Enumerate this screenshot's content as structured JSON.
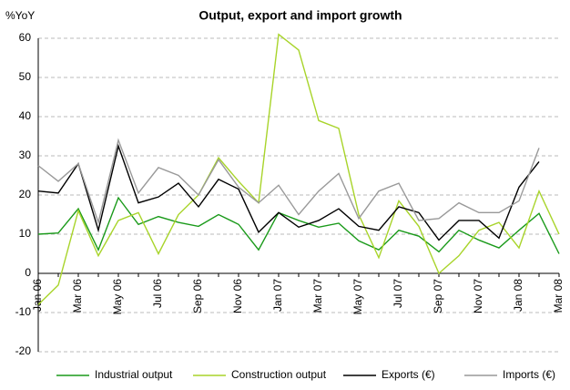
{
  "chart_data": {
    "type": "line",
    "title": "Output, export and import growth",
    "y_axis_label": "%YoY",
    "categories": [
      "Jan 06",
      null,
      "Mar 06",
      null,
      "May 06",
      null,
      "Jul 06",
      null,
      "Sep 06",
      null,
      "Nov 06",
      null,
      "Jan 07",
      null,
      "Mar 07",
      null,
      "May 07",
      null,
      "Jul 07",
      null,
      "Sep 07",
      null,
      "Nov 07",
      null,
      "Jan 08",
      null,
      "Mar 08"
    ],
    "series": [
      {
        "name": "Industrial output",
        "color": "#1a9a1a",
        "values": [
          10,
          10.3,
          16.5,
          6,
          19.3,
          12.5,
          14.5,
          13,
          12,
          15,
          12.5,
          6,
          15.5,
          13.5,
          11.8,
          12.8,
          8.3,
          6,
          11,
          9.5,
          5.5,
          11,
          8.5,
          6.5,
          11,
          15.3,
          5
        ]
      },
      {
        "name": "Construction output",
        "color": "#a8d42a",
        "values": [
          -8,
          -3,
          16,
          4.5,
          13.5,
          15.5,
          5,
          15,
          20,
          29.5,
          23.5,
          18,
          61,
          57,
          39,
          37,
          15,
          4,
          18.5,
          12,
          0,
          4.5,
          11,
          13,
          6.5,
          21,
          10
        ]
      },
      {
        "name": "Exports (€)",
        "color": "#000000",
        "values": [
          21,
          20.5,
          28,
          11,
          32.5,
          18,
          19.5,
          23,
          17,
          24,
          21.5,
          10.5,
          15.5,
          11.8,
          13.5,
          16.5,
          12,
          11,
          17,
          15.5,
          8.5,
          13.5,
          13.5,
          9,
          22,
          28.5,
          null
        ]
      },
      {
        "name": "Imports (€)",
        "color": "#999999",
        "values": [
          27.5,
          23.5,
          28,
          13,
          34,
          20.5,
          27,
          25,
          20,
          29,
          22,
          18,
          22.5,
          15,
          21,
          25.5,
          14,
          21,
          23,
          13.5,
          14,
          18,
          15.5,
          15.5,
          18.5,
          32,
          null
        ]
      }
    ],
    "ylim": [
      -20,
      60
    ],
    "yticks": [
      -20,
      -10,
      0,
      10,
      20,
      30,
      40,
      50,
      60
    ],
    "grid": true,
    "legend": "bottom"
  }
}
